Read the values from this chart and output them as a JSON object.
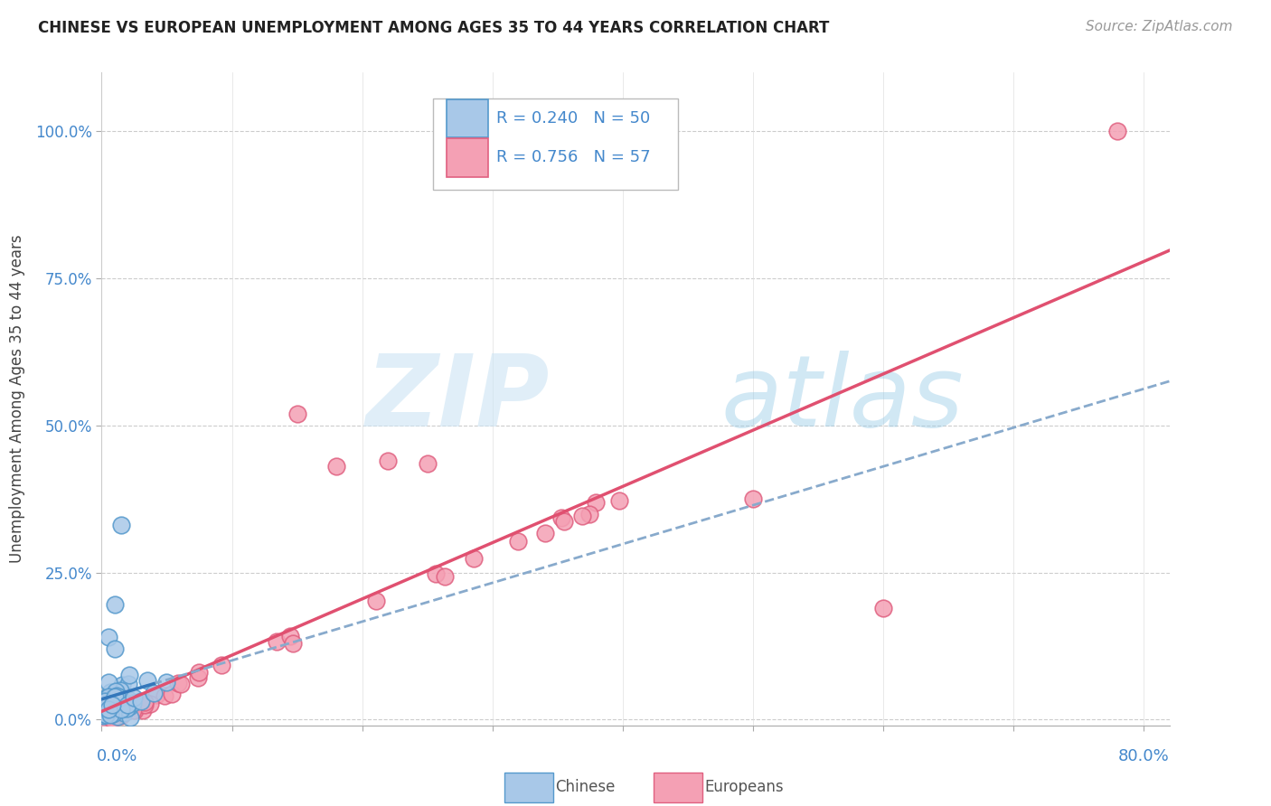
{
  "title": "CHINESE VS EUROPEAN UNEMPLOYMENT AMONG AGES 35 TO 44 YEARS CORRELATION CHART",
  "source": "Source: ZipAtlas.com",
  "ylabel": "Unemployment Among Ages 35 to 44 years",
  "ytick_vals": [
    0.0,
    0.25,
    0.5,
    0.75,
    1.0
  ],
  "ytick_labels": [
    "0.0%",
    "25.0%",
    "50.0%",
    "75.0%",
    "100.0%"
  ],
  "xlim": [
    0.0,
    0.82
  ],
  "ylim": [
    -0.01,
    1.1
  ],
  "chinese_R": 0.24,
  "chinese_N": 50,
  "european_R": 0.756,
  "european_N": 57,
  "chinese_fill": "#a8c8e8",
  "chinese_edge": "#5599cc",
  "european_fill": "#f4a0b4",
  "european_edge": "#e06080",
  "chinese_line_color": "#88aacc",
  "european_line_color": "#e05070",
  "background_color": "#ffffff",
  "grid_color": "#cccccc",
  "watermark_zip_color": "#cce0f0",
  "watermark_atlas_color": "#aaccdd",
  "legend_box_color": "#dddddd",
  "title_color": "#222222",
  "source_color": "#999999",
  "tick_color": "#4488cc",
  "ylabel_color": "#444444"
}
